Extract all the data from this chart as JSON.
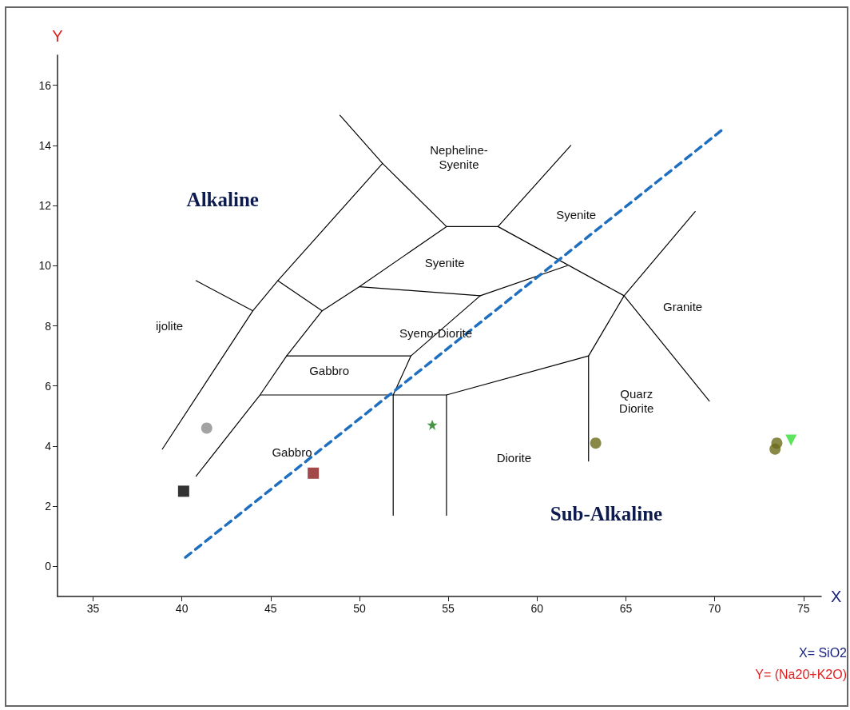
{
  "chart_data": {
    "type": "scatter",
    "xlabel": "X",
    "ylabel": "Y",
    "xlim": [
      33,
      76
    ],
    "ylim": [
      -1,
      17
    ],
    "xticks": [
      35,
      40,
      45,
      50,
      55,
      60,
      65,
      70,
      75
    ],
    "yticks": [
      0,
      2,
      4,
      6,
      8,
      10,
      12,
      14,
      16
    ],
    "grid": false,
    "series": [
      {
        "type": "line",
        "color": "#000000",
        "marker": "none",
        "line_style": "solid",
        "x": [
          38.9,
          44.0,
          45.4,
          51.3,
          54.9,
          57.8,
          64.9,
          69.7
        ],
        "values": [
          3.9,
          8.5,
          9.5,
          13.4,
          11.3,
          11.3,
          9.0,
          5.5
        ]
      },
      {
        "type": "line",
        "color": "#000000",
        "marker": "none",
        "line_style": "solid",
        "x": [
          40.8,
          44.0
        ],
        "values": [
          9.5,
          8.5
        ]
      },
      {
        "type": "line",
        "color": "#000000",
        "marker": "none",
        "line_style": "solid",
        "x": [
          48.9,
          51.3
        ],
        "values": [
          15.0,
          13.4
        ]
      },
      {
        "type": "line",
        "color": "#000000",
        "marker": "none",
        "line_style": "solid",
        "x": [
          40.8,
          44.4,
          45.9,
          47.9,
          50.0,
          56.8,
          61.7
        ],
        "values": [
          3.0,
          5.7,
          7.0,
          8.5,
          9.3,
          9.0,
          10.0
        ]
      },
      {
        "type": "line",
        "color": "#000000",
        "marker": "none",
        "line_style": "solid",
        "x": [
          45.4,
          47.9
        ],
        "values": [
          9.5,
          8.5
        ]
      },
      {
        "type": "line",
        "color": "#000000",
        "marker": "none",
        "line_style": "solid",
        "x": [
          50.0,
          54.9
        ],
        "values": [
          9.3,
          11.3
        ]
      },
      {
        "type": "line",
        "color": "#000000",
        "marker": "none",
        "line_style": "solid",
        "x": [
          57.8,
          61.9
        ],
        "values": [
          11.3,
          14.0
        ]
      },
      {
        "type": "line",
        "color": "#000000",
        "marker": "none",
        "line_style": "solid",
        "x": [
          62.9,
          62.9,
          64.9,
          68.9
        ],
        "values": [
          3.5,
          7.0,
          9.0,
          11.8
        ]
      },
      {
        "type": "line",
        "color": "#000000",
        "marker": "none",
        "line_style": "solid",
        "x": [
          54.9,
          54.9,
          62.9
        ],
        "values": [
          1.7,
          5.7,
          7.0
        ]
      },
      {
        "type": "line",
        "color": "#000000",
        "marker": "none",
        "line_style": "solid",
        "x": [
          51.9,
          51.9,
          52.9,
          56.8
        ],
        "values": [
          1.7,
          5.7,
          7.0,
          9.0
        ]
      },
      {
        "type": "line",
        "color": "#000000",
        "marker": "none",
        "line_style": "solid",
        "x": [
          45.9,
          52.9
        ],
        "values": [
          7.0,
          7.0
        ]
      },
      {
        "type": "line",
        "color": "#000000",
        "marker": "none",
        "line_style": "solid",
        "x": [
          44.4,
          54.9
        ],
        "values": [
          5.7,
          5.7
        ]
      },
      {
        "type": "line",
        "color": "#1f6fc0",
        "marker": "none",
        "line_style": "dashed",
        "x": [
          40.2,
          70.6
        ],
        "values": [
          0.3,
          14.6
        ]
      },
      {
        "color": "#8c8c8c",
        "marker": "circle",
        "x": [
          41.4
        ],
        "values": [
          4.6
        ]
      },
      {
        "color": "#000000",
        "marker": "square",
        "x": [
          40.1
        ],
        "values": [
          2.5
        ]
      },
      {
        "color": "#8b1a1a",
        "marker": "square",
        "x": [
          47.4
        ],
        "values": [
          3.1
        ]
      },
      {
        "color": "#1a7a1a",
        "marker": "star",
        "x": [
          54.1
        ],
        "values": [
          4.7
        ]
      },
      {
        "color": "#6b6b1a",
        "marker": "circle",
        "x": [
          63.3,
          73.4,
          73.5
        ],
        "values": [
          4.1,
          3.9,
          4.1
        ]
      },
      {
        "color": "#33dd33",
        "marker": "triangle",
        "x": [
          74.3
        ],
        "values": [
          4.2
        ]
      }
    ],
    "annotations": [
      "Alkaline",
      "Nepheline-\nSyenite",
      "Syenite",
      "Syenite",
      "ijolite",
      "Granite",
      "Syeno-Diorite",
      "Gabbro",
      "Quarz\nDiorite",
      "Gabbro",
      "Diorite",
      "Sub-Alkaline",
      "X= SiO2",
      "Y= (Na20+K2O)"
    ]
  }
}
